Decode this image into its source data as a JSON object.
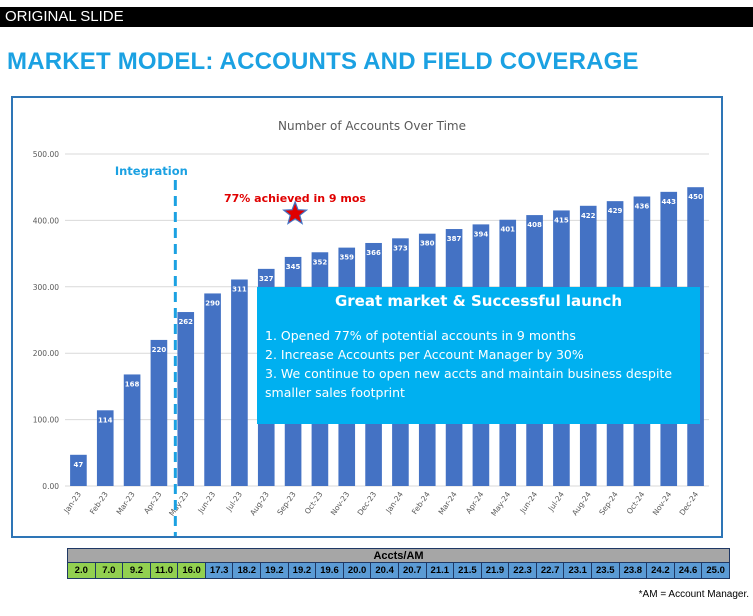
{
  "banner": "ORIGINAL SLIDE",
  "title": "MARKET MODEL:  ACCOUNTS AND FIELD COVERAGE",
  "colors": {
    "title": "#1BA1E2",
    "bar": "#4472C4",
    "integration": "#1BA1E2",
    "annotation": "#E00000",
    "callout_bg": "#00B0F0",
    "cell_green": "#92D050",
    "cell_blue": "#5B9BD5"
  },
  "chart_data": {
    "type": "bar",
    "title": "Number of Accounts Over Time",
    "xlabel": "",
    "ylabel": "",
    "ylim": [
      0,
      500
    ],
    "yticks": [
      "0.00",
      "100.00",
      "200.00",
      "300.00",
      "400.00",
      "500.00"
    ],
    "grid": true,
    "categories": [
      "Jan-23",
      "Feb-23",
      "Mar-23",
      "Apr-23",
      "May-23",
      "Jun-23",
      "Jul-23",
      "Aug-23",
      "Sep-23",
      "Oct-23",
      "Nov-23",
      "Dec-23",
      "Jan-24",
      "Feb-24",
      "Mar-24",
      "Apr-24",
      "May-24",
      "Jun-24",
      "Jul-24",
      "Aug-24",
      "Sep-24",
      "Oct-24",
      "Nov-24",
      "Dec-24"
    ],
    "values": [
      47,
      114,
      168,
      220,
      262,
      290,
      311,
      327,
      345,
      352,
      359,
      366,
      373,
      380,
      387,
      394,
      401,
      408,
      415,
      422,
      429,
      436,
      443,
      450
    ],
    "annotations": {
      "integration_label": "Integration",
      "integration_after_category": "Apr-23",
      "achievement_label": "77% achieved in 9 mos",
      "star_category": "Sep-23",
      "star_value": 410
    }
  },
  "callout": {
    "title": "Great market & Successful launch",
    "points": [
      "1. Opened 77% of potential accounts in 9 months",
      "2. Increase Accounts per Account Manager by 30%",
      "3. We continue to open new accts and maintain business despite smaller sales footprint"
    ]
  },
  "table": {
    "header": "Accts/AM",
    "values": [
      "2.0",
      "7.0",
      "9.2",
      "11.0",
      "16.0",
      "17.3",
      "18.2",
      "19.2",
      "19.2",
      "19.6",
      "20.0",
      "20.4",
      "20.7",
      "21.1",
      "21.5",
      "21.9",
      "22.3",
      "22.7",
      "23.1",
      "23.5",
      "23.8",
      "24.2",
      "24.6",
      "25.0"
    ],
    "green_count": 5
  },
  "footnote": "*AM = Account Manager."
}
